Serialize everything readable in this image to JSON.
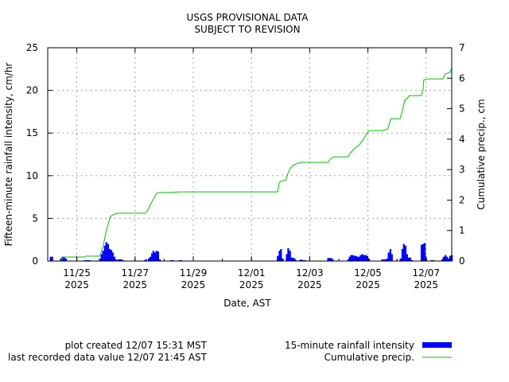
{
  "chart_data": {
    "type": "bar+line",
    "title": [
      "USGS PROVISIONAL DATA",
      "SUBJECT TO REVISION"
    ],
    "xlabel": "Date, AST",
    "ylabel": "Fifteen-minute rainfall intensity, cm/hr",
    "y2label": "Cumulative precip., cm",
    "x_units": "days since 11/24/2025 00:00 AST",
    "xlim": [
      0,
      13.88
    ],
    "ylim": [
      0,
      25
    ],
    "y2lim": [
      0,
      7
    ],
    "grid": true,
    "x_ticks": [
      {
        "day": 1,
        "label": "11/25",
        "year": "2025"
      },
      {
        "day": 3,
        "label": "11/27",
        "year": "2025"
      },
      {
        "day": 5,
        "label": "11/29",
        "year": "2025"
      },
      {
        "day": 7,
        "label": "12/01",
        "year": "2025"
      },
      {
        "day": 9,
        "label": "12/03",
        "year": "2025"
      },
      {
        "day": 11,
        "label": "12/05",
        "year": "2025"
      },
      {
        "day": 13,
        "label": "12/07",
        "year": "2025"
      }
    ],
    "y_ticks": [
      "0",
      "5",
      "10",
      "15",
      "20",
      "25"
    ],
    "y2_ticks": [
      "0",
      "1",
      "2",
      "3",
      "4",
      "5",
      "6",
      "7"
    ],
    "series": [
      {
        "name": "15-minute rainfall intensity",
        "axis": "left",
        "color": "#0000ff",
        "bar_width_days": 0.055,
        "points": [
          [
            0.1,
            0.5
          ],
          [
            0.15,
            0.5
          ],
          [
            0.45,
            0.3
          ],
          [
            0.51,
            0.5
          ],
          [
            0.56,
            0.5
          ],
          [
            0.62,
            0.3
          ],
          [
            1.27,
            0.1
          ],
          [
            1.33,
            0.1
          ],
          [
            1.38,
            0.1
          ],
          [
            1.44,
            0.1
          ],
          [
            1.79,
            0.3
          ],
          [
            1.85,
            0.8
          ],
          [
            1.9,
            1.2
          ],
          [
            1.96,
            1.8
          ],
          [
            2.01,
            2.2
          ],
          [
            2.07,
            2.0
          ],
          [
            2.12,
            1.4
          ],
          [
            2.18,
            1.3
          ],
          [
            2.23,
            1.0
          ],
          [
            2.29,
            0.5
          ],
          [
            2.34,
            0.2
          ],
          [
            2.42,
            0.2
          ],
          [
            2.48,
            0.2
          ],
          [
            2.53,
            0.2
          ],
          [
            2.59,
            0.1
          ],
          [
            3.33,
            0.1
          ],
          [
            3.38,
            0.2
          ],
          [
            3.47,
            0.3
          ],
          [
            3.52,
            0.5
          ],
          [
            3.58,
            0.9
          ],
          [
            3.63,
            1.2
          ],
          [
            3.68,
            1.0
          ],
          [
            3.74,
            1.2
          ],
          [
            3.79,
            1.1
          ],
          [
            3.85,
            0.2
          ],
          [
            4.23,
            0.1
          ],
          [
            4.29,
            0.1
          ],
          [
            4.53,
            0.1
          ],
          [
            4.59,
            0.1
          ],
          [
            7.9,
            0.6
          ],
          [
            7.96,
            1.2
          ],
          [
            8.01,
            1.4
          ],
          [
            8.07,
            0.3
          ],
          [
            8.21,
            0.8
          ],
          [
            8.26,
            1.5
          ],
          [
            8.32,
            1.2
          ],
          [
            8.37,
            0.4
          ],
          [
            8.42,
            0.4
          ],
          [
            8.48,
            0.3
          ],
          [
            8.53,
            0.1
          ],
          [
            8.67,
            0.15
          ],
          [
            8.73,
            0.15
          ],
          [
            8.78,
            0.1
          ],
          [
            8.84,
            0.1
          ],
          [
            9.63,
            0.35
          ],
          [
            9.68,
            0.35
          ],
          [
            9.74,
            0.35
          ],
          [
            9.79,
            0.2
          ],
          [
            10.32,
            0.2
          ],
          [
            10.37,
            0.5
          ],
          [
            10.42,
            0.7
          ],
          [
            10.48,
            0.7
          ],
          [
            10.53,
            0.6
          ],
          [
            10.59,
            0.6
          ],
          [
            10.64,
            0.5
          ],
          [
            10.7,
            0.5
          ],
          [
            10.75,
            0.7
          ],
          [
            10.81,
            0.8
          ],
          [
            10.86,
            0.7
          ],
          [
            10.92,
            0.7
          ],
          [
            10.97,
            0.6
          ],
          [
            11.03,
            0.3
          ],
          [
            11.49,
            0.2
          ],
          [
            11.55,
            0.2
          ],
          [
            11.6,
            0.2
          ],
          [
            11.66,
            0.3
          ],
          [
            11.71,
            1.0
          ],
          [
            11.77,
            1.4
          ],
          [
            11.82,
            0.8
          ],
          [
            12.12,
            0.3
          ],
          [
            12.18,
            1.4
          ],
          [
            12.23,
            2.0
          ],
          [
            12.29,
            1.8
          ],
          [
            12.34,
            0.8
          ],
          [
            12.4,
            0.4
          ],
          [
            12.45,
            0.4
          ],
          [
            12.51,
            0.1
          ],
          [
            12.84,
            1.9
          ],
          [
            12.89,
            2.0
          ],
          [
            12.95,
            2.1
          ],
          [
            13.0,
            0.3
          ],
          [
            13.19,
            0.1
          ],
          [
            13.25,
            0.1
          ],
          [
            13.55,
            0.2
          ],
          [
            13.6,
            0.5
          ],
          [
            13.66,
            0.7
          ],
          [
            13.71,
            0.5
          ],
          [
            13.77,
            0.3
          ],
          [
            13.82,
            0.6
          ],
          [
            13.88,
            0.7
          ]
        ]
      },
      {
        "name": "Cumulative precip.",
        "axis": "right",
        "color": "#00c000",
        "points": [
          [
            0.45,
            0
          ],
          [
            0.56,
            0.13
          ],
          [
            1.27,
            0.13
          ],
          [
            1.3,
            0.16
          ],
          [
            1.79,
            0.16
          ],
          [
            1.9,
            0.47
          ],
          [
            2.01,
            0.99
          ],
          [
            2.15,
            1.46
          ],
          [
            2.29,
            1.54
          ],
          [
            2.42,
            1.57
          ],
          [
            3.33,
            1.57
          ],
          [
            3.41,
            1.62
          ],
          [
            3.52,
            1.83
          ],
          [
            3.63,
            2.04
          ],
          [
            3.74,
            2.22
          ],
          [
            3.79,
            2.25
          ],
          [
            4.23,
            2.25
          ],
          [
            4.51,
            2.27
          ],
          [
            7.9,
            2.27
          ],
          [
            7.96,
            2.58
          ],
          [
            8.07,
            2.64
          ],
          [
            8.18,
            2.64
          ],
          [
            8.23,
            2.82
          ],
          [
            8.32,
            3.03
          ],
          [
            8.45,
            3.16
          ],
          [
            8.59,
            3.21
          ],
          [
            8.73,
            3.24
          ],
          [
            9.63,
            3.24
          ],
          [
            9.71,
            3.34
          ],
          [
            9.82,
            3.42
          ],
          [
            10.32,
            3.42
          ],
          [
            10.4,
            3.55
          ],
          [
            10.53,
            3.68
          ],
          [
            10.7,
            3.81
          ],
          [
            10.86,
            4.02
          ],
          [
            10.97,
            4.2
          ],
          [
            11.05,
            4.28
          ],
          [
            11.49,
            4.28
          ],
          [
            11.68,
            4.33
          ],
          [
            11.74,
            4.52
          ],
          [
            11.79,
            4.67
          ],
          [
            12.1,
            4.67
          ],
          [
            12.18,
            4.91
          ],
          [
            12.26,
            5.27
          ],
          [
            12.36,
            5.35
          ],
          [
            12.42,
            5.43
          ],
          [
            12.84,
            5.43
          ],
          [
            12.89,
            5.61
          ],
          [
            12.92,
            5.95
          ],
          [
            13.11,
            5.98
          ],
          [
            13.58,
            5.98
          ],
          [
            13.66,
            6.14
          ],
          [
            13.82,
            6.19
          ],
          [
            13.88,
            6.34
          ]
        ]
      }
    ],
    "legend_placement": "bottom-right",
    "footer": {
      "created": "plot created 12/07 15:31 MST",
      "last_value": "last recorded data value 12/07 21:45 AST"
    }
  }
}
